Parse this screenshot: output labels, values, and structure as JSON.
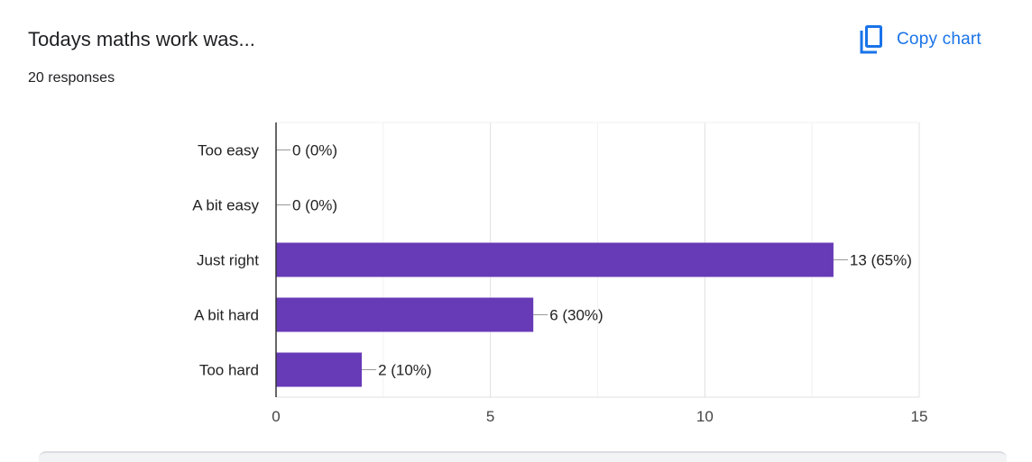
{
  "question": {
    "title": "Todays maths work was...",
    "responses": "20 responses"
  },
  "toolbar": {
    "copy_label": "Copy chart",
    "copy_icon": "copy-icon",
    "accent_color": "#1a73e8"
  },
  "chart_data": {
    "type": "bar",
    "orientation": "horizontal",
    "categories": [
      "Too easy",
      "A bit easy",
      "Just right",
      "A bit hard",
      "Too hard"
    ],
    "values": [
      0,
      0,
      13,
      6,
      2
    ],
    "data_labels": [
      "0 (0%)",
      "0 (0%)",
      "13 (65%)",
      "6 (30%)",
      "2 (10%)"
    ],
    "xlim": [
      0,
      15
    ],
    "xticks": [
      0,
      5,
      10,
      15
    ],
    "xtick_labels": [
      "0",
      "5",
      "10",
      "15"
    ],
    "grid": true,
    "bar_color": "#673ab7"
  }
}
